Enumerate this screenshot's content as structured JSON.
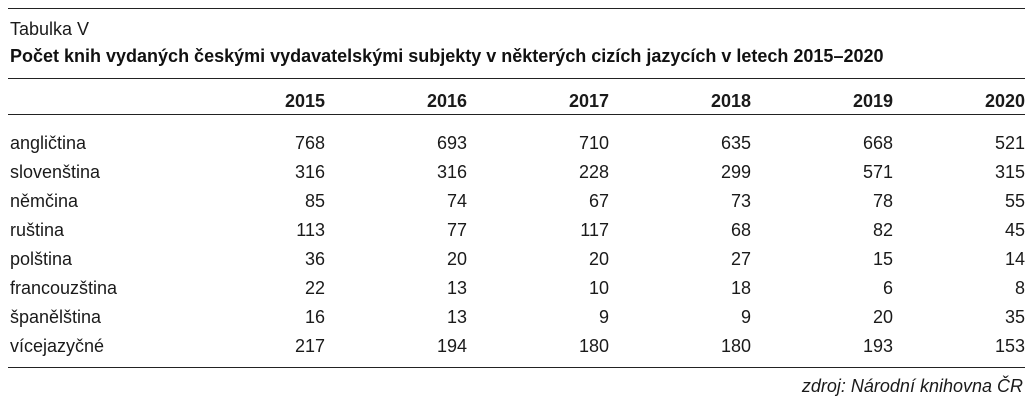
{
  "label": "Tabulka V",
  "title": "Počet knih vydaných českými vydavatelskými subjekty v některých cizích jazycích v letech 2015–2020",
  "columns": [
    "2015",
    "2016",
    "2017",
    "2018",
    "2019",
    "2020"
  ],
  "rows": [
    {
      "language": "angličtina",
      "values": [
        "768",
        "693",
        "710",
        "635",
        "668",
        "521"
      ]
    },
    {
      "language": "slovenština",
      "values": [
        "316",
        "316",
        "228",
        "299",
        "571",
        "315"
      ]
    },
    {
      "language": "němčina",
      "values": [
        "85",
        "74",
        "67",
        "73",
        "78",
        "55"
      ]
    },
    {
      "language": "ruština",
      "values": [
        "113",
        "77",
        "117",
        "68",
        "82",
        "45"
      ]
    },
    {
      "language": "polština",
      "values": [
        "36",
        "20",
        "20",
        "27",
        "15",
        "14"
      ]
    },
    {
      "language": "francouzština",
      "values": [
        "22",
        "13",
        "10",
        "18",
        "6",
        "8"
      ]
    },
    {
      "language": "španělština",
      "values": [
        "16",
        "13",
        "9",
        "9",
        "20",
        "35"
      ]
    },
    {
      "language": "vícejazyčné",
      "values": [
        "217",
        "194",
        "180",
        "180",
        "193",
        "153"
      ]
    }
  ],
  "source": "zdroj: Národní knihovna ČR"
}
